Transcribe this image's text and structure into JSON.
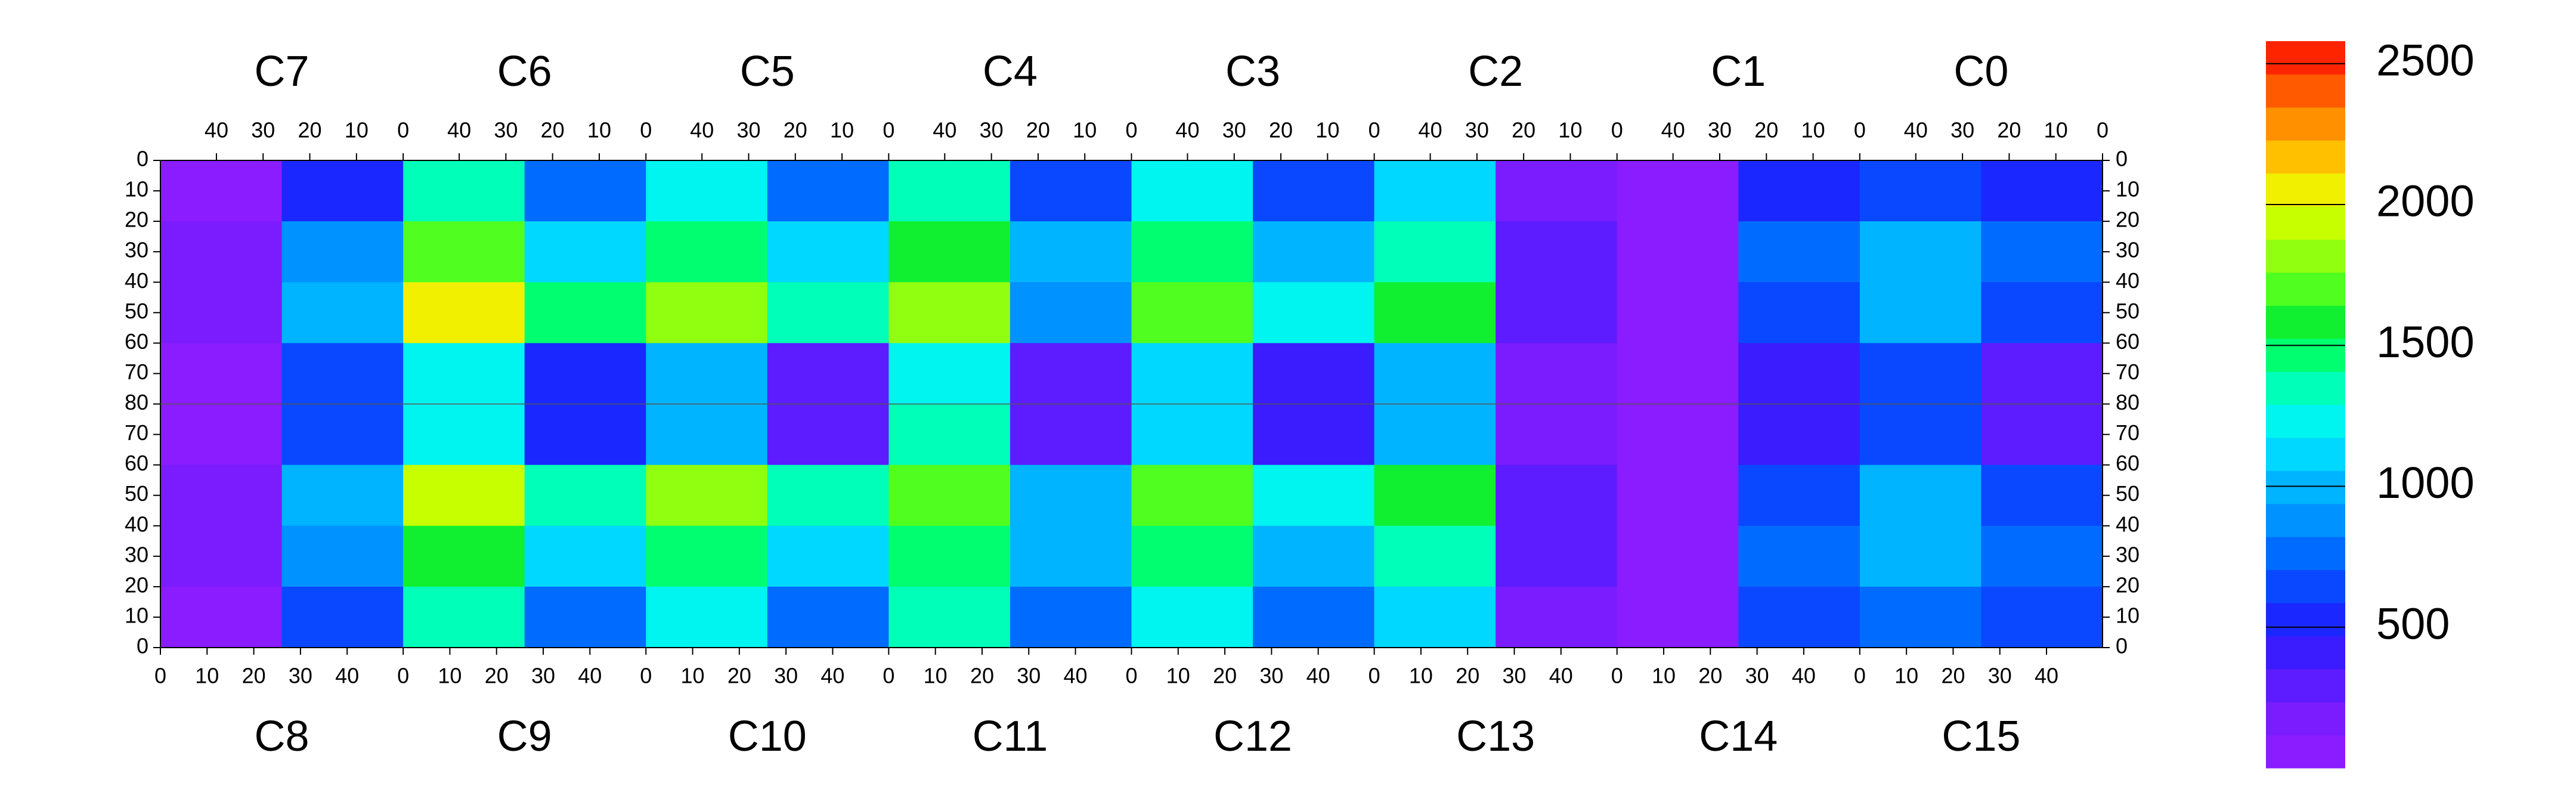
{
  "chart_data": {
    "type": "heatmap",
    "top_labels": [
      "C7",
      "C6",
      "C5",
      "C4",
      "C3",
      "C2",
      "C1",
      "C0"
    ],
    "bottom_labels": [
      "C8",
      "C9",
      "C10",
      "C11",
      "C12",
      "C13",
      "C14",
      "C15"
    ],
    "xlim": [
      0,
      52
    ],
    "xticks_top": [
      40,
      30,
      20,
      10,
      0
    ],
    "xticks_bottom": [
      0,
      10,
      20,
      30,
      40
    ],
    "ylim": [
      0,
      80
    ],
    "yticks": [
      0,
      10,
      20,
      30,
      40,
      50,
      60,
      70,
      80
    ],
    "z": [
      [
        100,
        500,
        1300,
        800,
        1200,
        800,
        1300,
        700,
        1200,
        700,
        1100,
        200,
        100,
        500,
        700,
        500
      ],
      [
        150,
        900,
        1700,
        1100,
        1500,
        1100,
        1600,
        1000,
        1500,
        1000,
        1400,
        300,
        100,
        800,
        1000,
        800
      ],
      [
        150,
        1000,
        2000,
        1500,
        1800,
        1400,
        1800,
        900,
        1700,
        1200,
        1600,
        300,
        100,
        700,
        1000,
        700
      ],
      [
        100,
        600,
        1200,
        500,
        1000,
        300,
        1200,
        300,
        1100,
        400,
        1000,
        200,
        100,
        400,
        600,
        300
      ],
      [
        100,
        600,
        1200,
        500,
        1000,
        300,
        1300,
        300,
        1100,
        400,
        1000,
        200,
        100,
        400,
        600,
        300
      ],
      [
        150,
        1000,
        1900,
        1400,
        1800,
        1400,
        1700,
        1000,
        1700,
        1200,
        1600,
        300,
        100,
        700,
        1000,
        700
      ],
      [
        150,
        900,
        1600,
        1100,
        1500,
        1100,
        1500,
        1000,
        1500,
        1000,
        1400,
        300,
        100,
        800,
        1000,
        800
      ],
      [
        100,
        700,
        1300,
        800,
        1200,
        800,
        1300,
        800,
        1200,
        800,
        1100,
        200,
        100,
        600,
        800,
        600
      ]
    ],
    "colorbar": {
      "zlim": [
        0,
        2580
      ],
      "zticks": [
        500,
        1000,
        1500,
        2000,
        2500
      ],
      "colors": [
        "#8a1cff",
        "#7a1cff",
        "#5c1cff",
        "#3a1cff",
        "#1a28ff",
        "#0a48ff",
        "#006cff",
        "#0092ff",
        "#00b4ff",
        "#00d8ff",
        "#00f4f0",
        "#00ffb8",
        "#00ff70",
        "#10f030",
        "#50ff20",
        "#90ff10",
        "#c8ff00",
        "#f0f000",
        "#ffc000",
        "#ff9000",
        "#ff5a00",
        "#ff2400"
      ]
    }
  }
}
